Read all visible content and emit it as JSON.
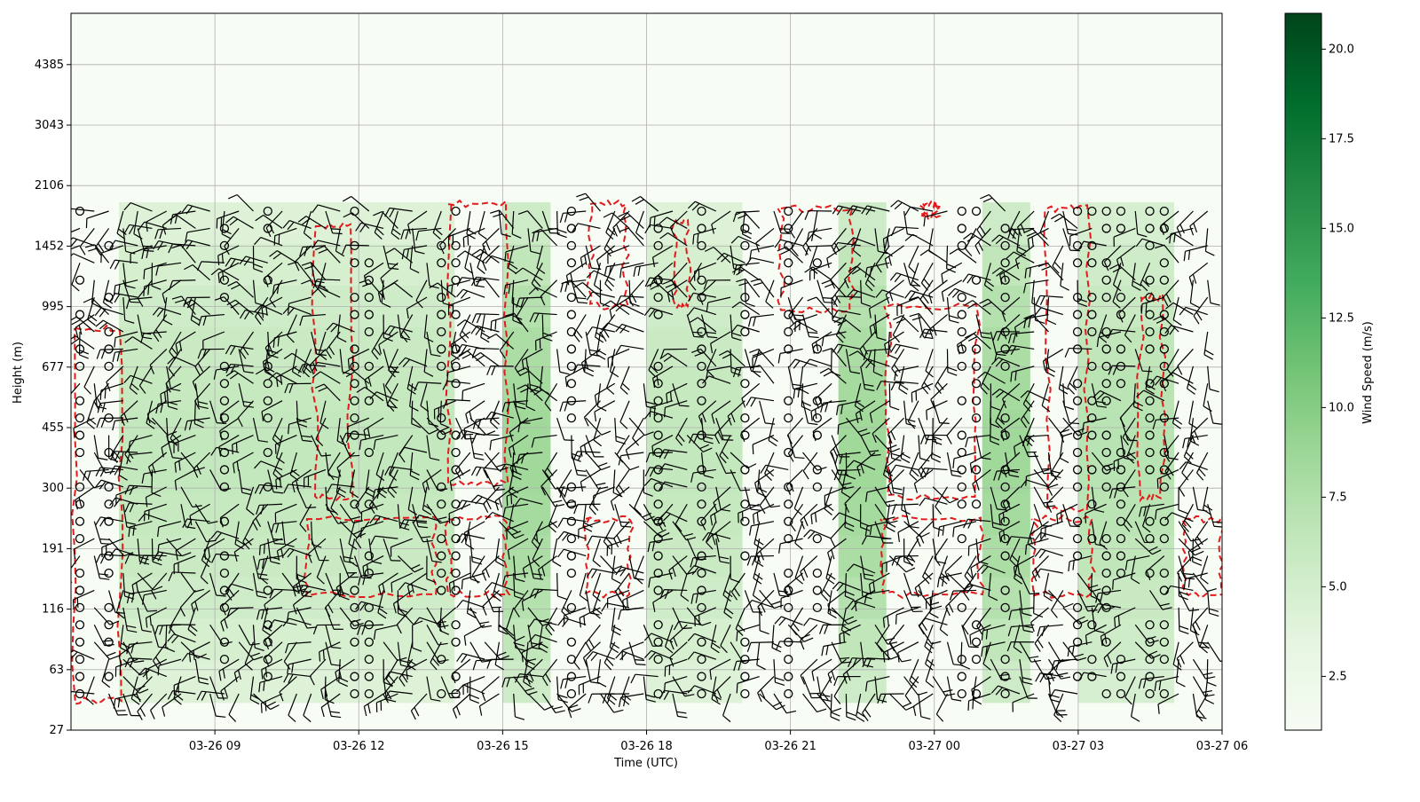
{
  "chart_data": {
    "type": "heatmap",
    "title": "",
    "xlabel": "Time (UTC)",
    "ylabel": "Height (m)",
    "colorbar_label": "Wind Speed (m/s)",
    "colormap": "Greens",
    "x_ticks": [
      "03-26 09",
      "03-26 12",
      "03-26 15",
      "03-26 18",
      "03-26 21",
      "03-27 00",
      "03-27 03",
      "03-27 06"
    ],
    "x_tick_hours": [
      9,
      12,
      15,
      18,
      21,
      24,
      27,
      30
    ],
    "x_range_hours": [
      6,
      30
    ],
    "y_ticks": [
      "27",
      "63",
      "116",
      "191",
      "300",
      "455",
      "677",
      "995",
      "1452",
      "2106",
      "3043",
      "4385"
    ],
    "colorbar_ticks": [
      "2.5",
      "5.0",
      "7.5",
      "10.0",
      "12.5",
      "15.0",
      "17.5",
      "20.0"
    ],
    "colorbar_values": [
      2.5,
      5.0,
      7.5,
      10.0,
      12.5,
      15.0,
      17.5,
      20.0
    ],
    "colorbar_range": [
      1.0,
      21.0
    ],
    "grid": true,
    "data_height_range_m": [
      40,
      1900
    ],
    "contour_color": "#e31a1c",
    "barb_color": "#000000",
    "high_speed_bands": [
      {
        "start": "03-26 07",
        "end": "03-26 12",
        "level": 0.35
      },
      {
        "start": "03-26 12",
        "end": "03-26 14",
        "level": 0.35
      },
      {
        "start": "03-26 15",
        "end": "03-26 16",
        "level": 0.5
      },
      {
        "start": "03-26 18",
        "end": "03-26 20",
        "level": 0.35
      },
      {
        "start": "03-26 22",
        "end": "03-26 23",
        "level": 0.5
      },
      {
        "start": "03-27 01",
        "end": "03-27 02",
        "level": 0.5
      },
      {
        "start": "03-27 03",
        "end": "03-27 05",
        "level": 0.4
      }
    ]
  }
}
